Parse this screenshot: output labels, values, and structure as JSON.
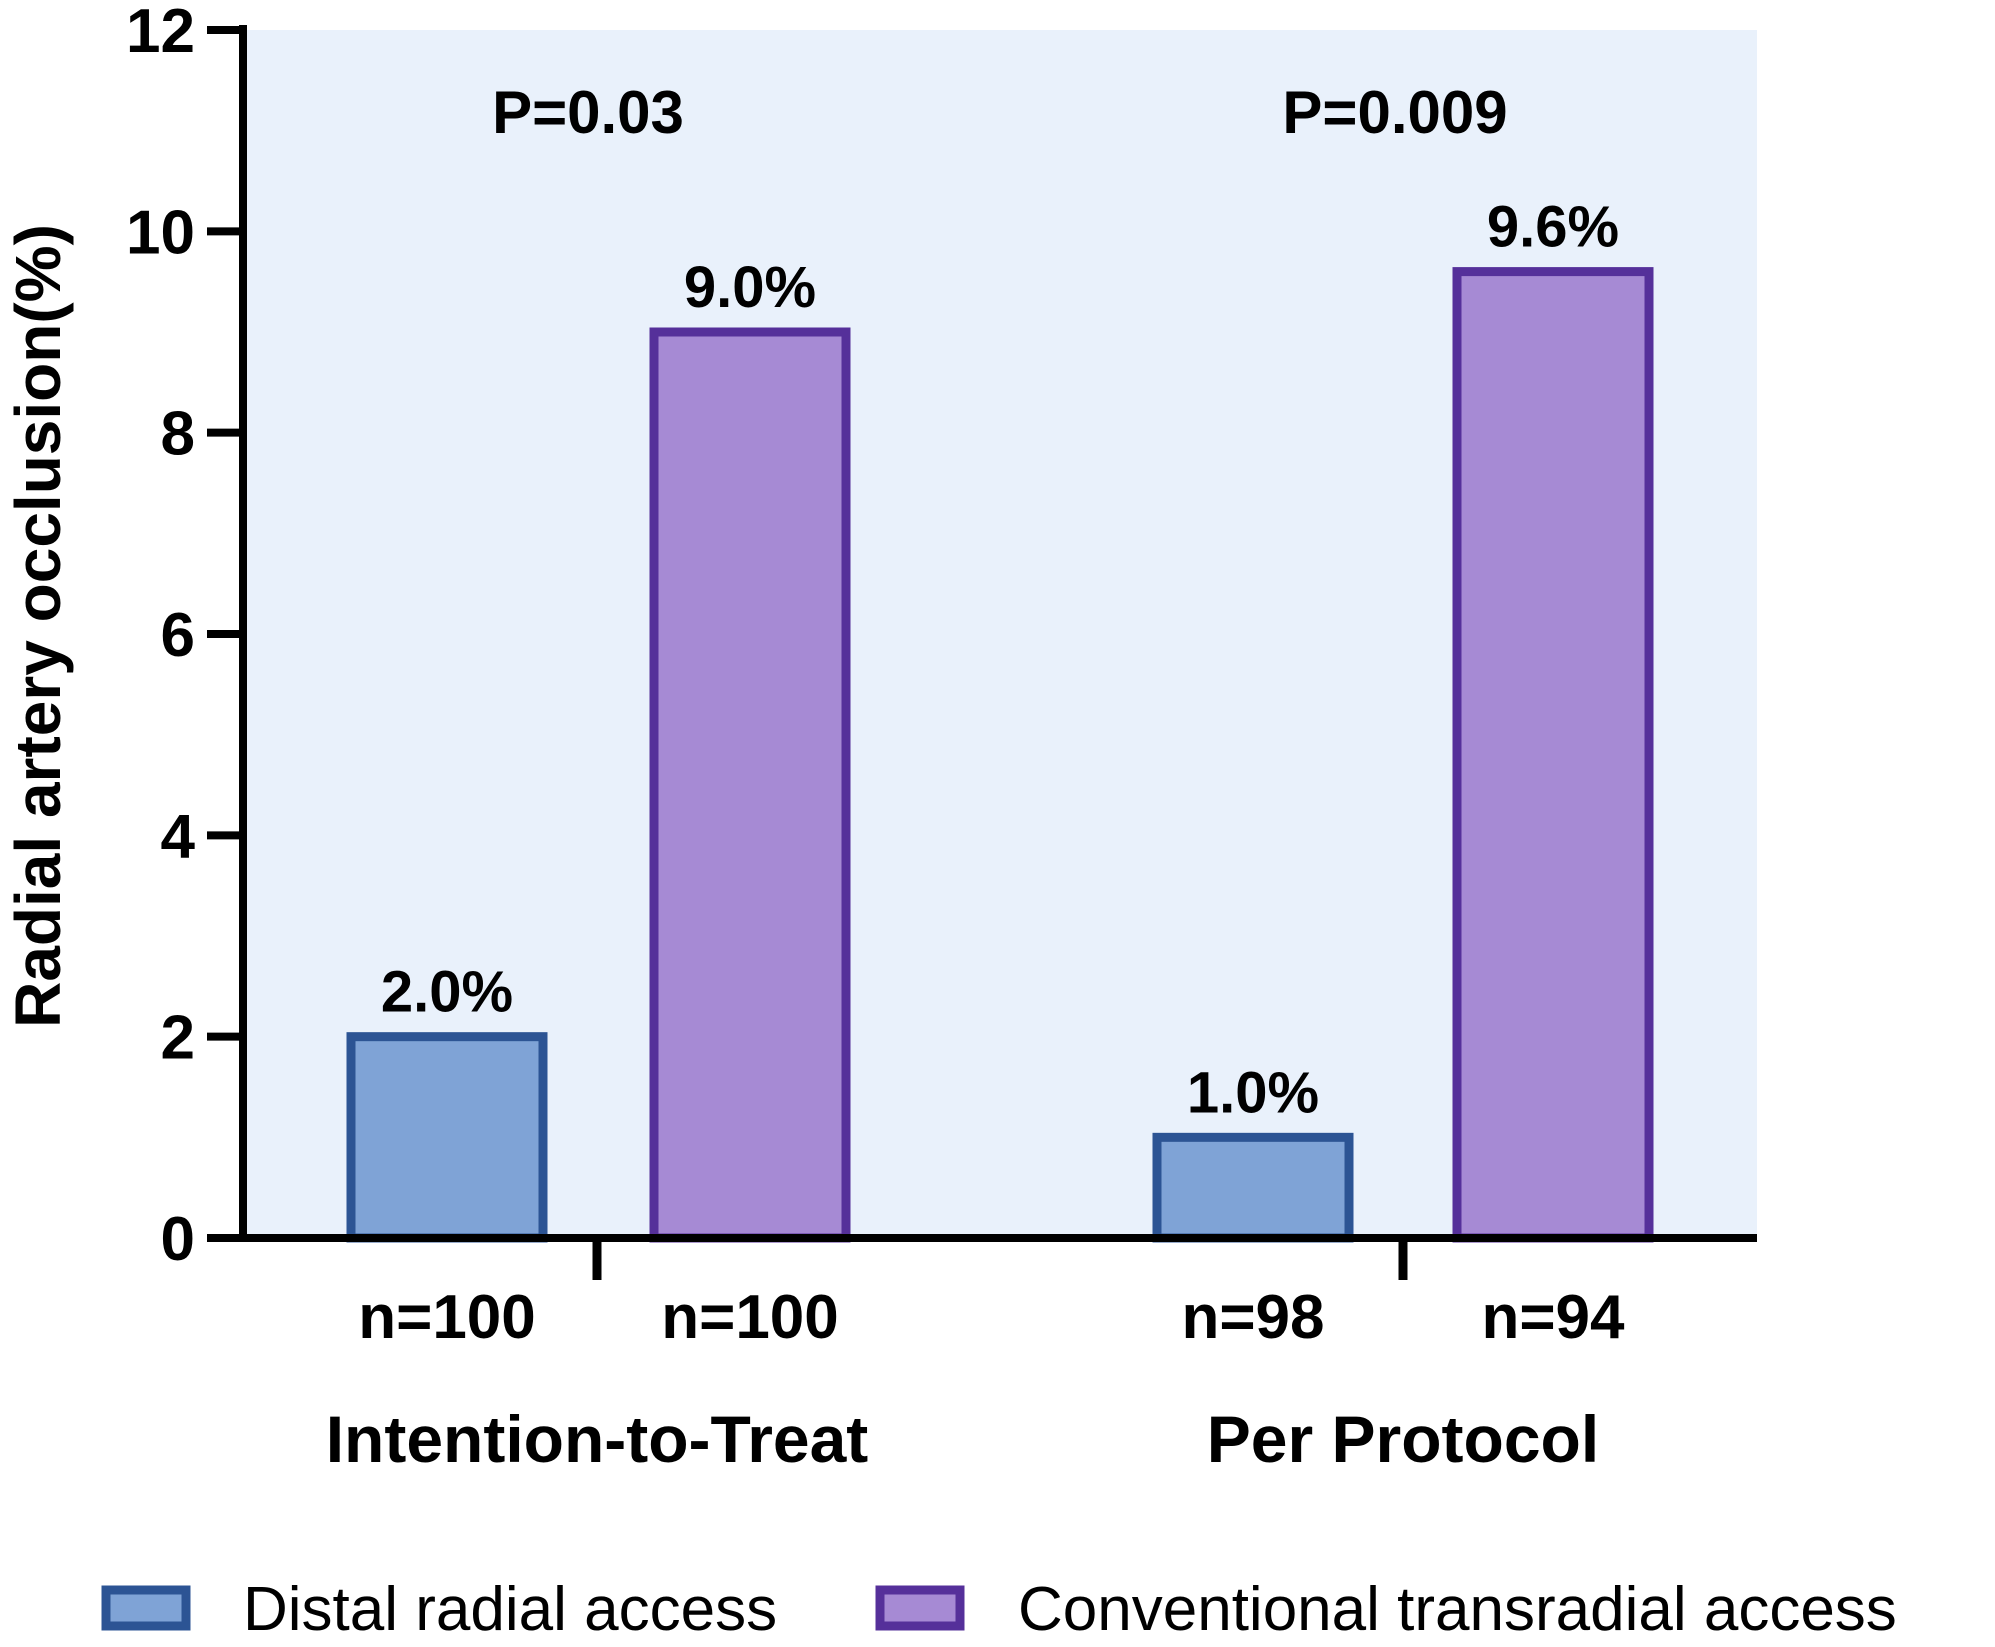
{
  "chart_data": {
    "type": "bar",
    "ylabel": "Radial artery occlusion(%)",
    "ylim": [
      0,
      12
    ],
    "yticks": [
      0,
      2,
      4,
      6,
      8,
      10,
      12
    ],
    "categories": [
      "Intention-to-Treat",
      "Per Protocol"
    ],
    "p_values": [
      "P=0.03",
      "P=0.009"
    ],
    "series": [
      {
        "name": "Distal radial access",
        "values": [
          2.0,
          1.0
        ],
        "value_labels": [
          "2.0%",
          "1.0%"
        ],
        "n_labels": [
          "n=100",
          "n=98"
        ],
        "fill": "#7fa3d6",
        "stroke": "#2c5494"
      },
      {
        "name": "Conventional transradial access",
        "values": [
          9.0,
          9.6
        ],
        "value_labels": [
          "9.0%",
          "9.6%"
        ],
        "n_labels": [
          "n=100",
          "n=94"
        ],
        "fill": "#a68ad4",
        "stroke": "#55309a"
      }
    ],
    "plot_background": "#e9f1fb"
  }
}
